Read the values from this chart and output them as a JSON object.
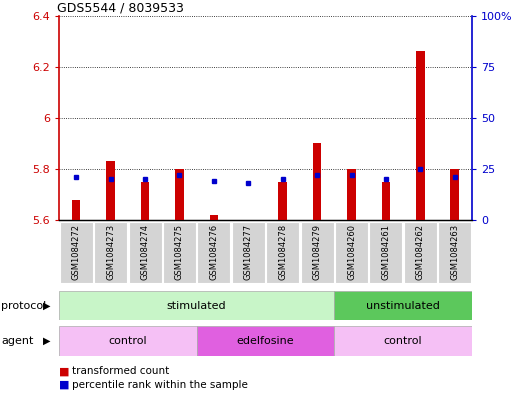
{
  "title": "GDS5544 / 8039533",
  "samples": [
    "GSM1084272",
    "GSM1084273",
    "GSM1084274",
    "GSM1084275",
    "GSM1084276",
    "GSM1084277",
    "GSM1084278",
    "GSM1084279",
    "GSM1084260",
    "GSM1084261",
    "GSM1084262",
    "GSM1084263"
  ],
  "red_values": [
    5.68,
    5.83,
    5.75,
    5.8,
    5.62,
    5.6,
    5.75,
    5.9,
    5.8,
    5.75,
    6.26,
    5.8
  ],
  "blue_values": [
    21,
    20,
    20,
    22,
    19,
    18,
    20,
    22,
    22,
    20,
    25,
    21
  ],
  "ylim_left": [
    5.6,
    6.4
  ],
  "ylim_right": [
    0,
    100
  ],
  "yticks_left": [
    5.6,
    5.8,
    6.0,
    6.2,
    6.4
  ],
  "yticks_right": [
    0,
    25,
    50,
    75,
    100
  ],
  "ytick_labels_right": [
    "0",
    "25",
    "50",
    "75",
    "100%"
  ],
  "bar_bottom": 5.6,
  "protocol_labels": [
    {
      "text": "stimulated",
      "start": 0,
      "end": 8
    },
    {
      "text": "unstimulated",
      "start": 8,
      "end": 12
    }
  ],
  "agent_labels": [
    {
      "text": "control",
      "start": 0,
      "end": 4
    },
    {
      "text": "edelfosine",
      "start": 4,
      "end": 8
    },
    {
      "text": "control",
      "start": 8,
      "end": 12
    }
  ],
  "protocol_color_light": "#c8f5c8",
  "protocol_color_dark": "#5cc85c",
  "agent_color_light": "#f5c0f5",
  "agent_color_dark": "#e060e0",
  "bar_color_red": "#cc0000",
  "bar_color_blue": "#0000cc",
  "bg_color": "#ffffff",
  "grid_color": "#000000",
  "left_axis_color": "#cc0000",
  "right_axis_color": "#0000cc",
  "sample_bg": "#d4d4d4",
  "legend_items": [
    "transformed count",
    "percentile rank within the sample"
  ],
  "bar_width": 0.45
}
